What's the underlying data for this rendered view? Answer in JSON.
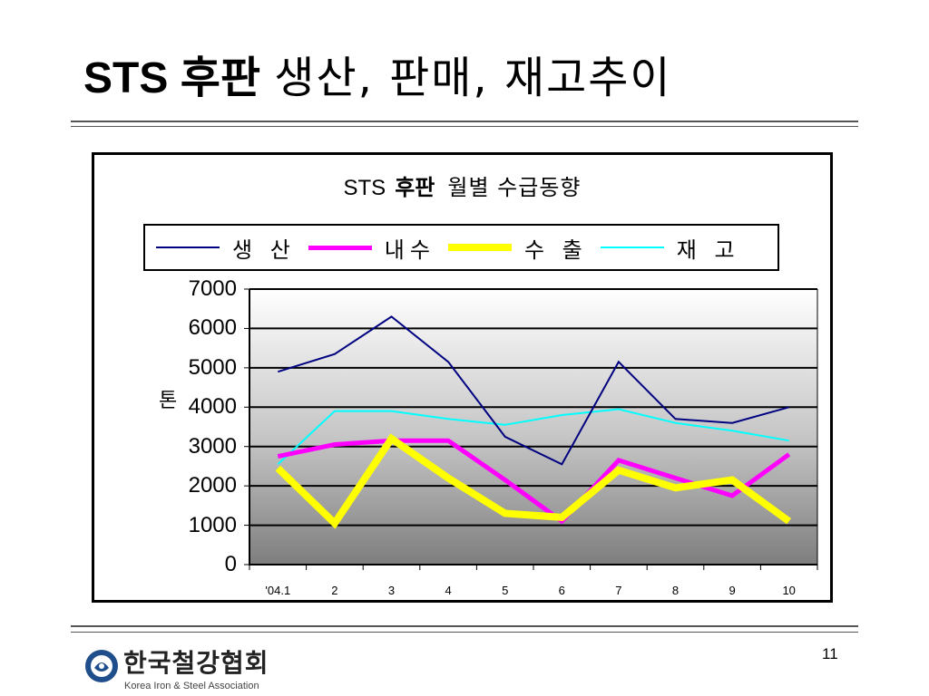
{
  "slide": {
    "title_bold": "STS 후판",
    "title_regular": "생산, 판매, 재고추이",
    "page_number": "11"
  },
  "organization": {
    "name": "한국철강협회",
    "subtitle": "Korea Iron & Steel Association"
  },
  "colors": {
    "production": "#000080",
    "domestic": "#ff00ff",
    "export": "#ffff00",
    "inventory": "#00ffff"
  },
  "chart_data": {
    "type": "line",
    "title_part1": "STS",
    "title_part2": "후판",
    "title_part3": "월별 수급동향",
    "ylabel": "톤",
    "ylim": [
      0,
      7000
    ],
    "yticks": [
      "0",
      "1000",
      "2000",
      "3000",
      "4000",
      "5000",
      "6000",
      "7000"
    ],
    "categories": [
      "'04.1",
      "2",
      "3",
      "4",
      "5",
      "6",
      "7",
      "8",
      "9",
      "10"
    ],
    "legend_position": "top",
    "grid": true,
    "series": [
      {
        "name": "생 산",
        "key": "production",
        "values": [
          4900,
          5350,
          6300,
          5150,
          3250,
          2550,
          5150,
          3700,
          3600,
          4000
        ]
      },
      {
        "name": "내수",
        "key": "domestic",
        "values": [
          2750,
          3050,
          3150,
          3150,
          2150,
          1100,
          2650,
          2200,
          1750,
          2800
        ]
      },
      {
        "name": "수 출",
        "key": "export",
        "values": [
          2450,
          1050,
          3200,
          2200,
          1300,
          1200,
          2400,
          1950,
          2150,
          1100
        ]
      },
      {
        "name": "재 고",
        "key": "inventory",
        "values": [
          2550,
          3900,
          3900,
          3700,
          3550,
          3800,
          3950,
          3600,
          3400,
          3150
        ]
      }
    ]
  }
}
